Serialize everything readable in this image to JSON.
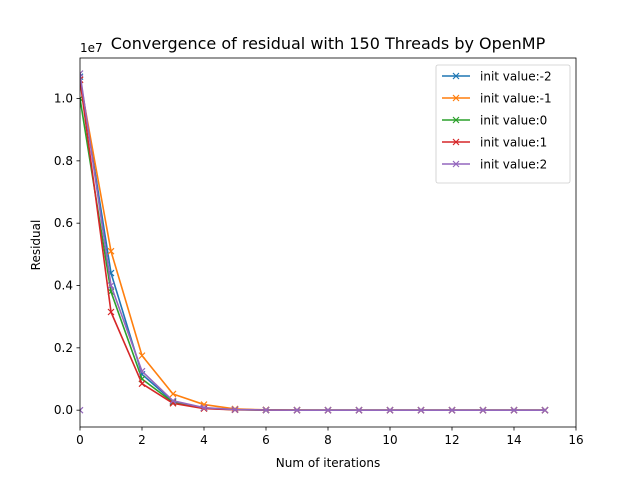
{
  "chart_data": {
    "type": "line",
    "title": "Convergence of residual with 150 Threads by OpenMP",
    "xlabel": "Num of iterations",
    "ylabel": "Residual",
    "y_offset_label": "1e7",
    "xlim": [
      0,
      16
    ],
    "ylim": [
      -0.054,
      1.13
    ],
    "y_scale_factor": 10000000,
    "xticks": [
      0,
      2,
      4,
      6,
      8,
      10,
      12,
      14,
      16
    ],
    "yticks": [
      0.0,
      0.2,
      0.4,
      0.6,
      0.8,
      1.0
    ],
    "ytick_labels": [
      "0.0",
      "0.2",
      "0.4",
      "0.6",
      "0.8",
      "1.0"
    ],
    "grid": false,
    "legend_position": "top-right",
    "marker": "x",
    "x": [
      0,
      1,
      2,
      3,
      4,
      5,
      6,
      7,
      8,
      9,
      10,
      11,
      12,
      13,
      14,
      15
    ],
    "series": [
      {
        "name": "init value:-2",
        "color": "#1f77b4",
        "values": [
          1.07,
          0.44,
          0.115,
          0.028,
          0.007,
          0.002,
          0.0005,
          0.0001,
          0,
          0,
          0,
          0,
          0,
          0,
          0,
          0
        ]
      },
      {
        "name": "init value:-1",
        "color": "#ff7f0e",
        "values": [
          1.06,
          0.51,
          0.175,
          0.052,
          0.018,
          0.004,
          0.001,
          0.0002,
          0,
          0,
          0,
          0,
          0,
          0,
          0,
          0
        ]
      },
      {
        "name": "init value:0",
        "color": "#2ca02c",
        "values": [
          1.0,
          0.38,
          0.1,
          0.025,
          0.006,
          0.0015,
          0.0004,
          0.0001,
          0,
          0,
          0,
          0,
          0,
          0,
          0,
          0
        ]
      },
      {
        "name": "init value:1",
        "color": "#d62728",
        "values": [
          1.06,
          0.315,
          0.085,
          0.022,
          0.005,
          0.0012,
          0.0003,
          0.0001,
          0,
          0,
          0,
          0,
          0,
          0,
          0,
          0
        ]
      },
      {
        "name": "init value:2",
        "color": "#9467bd",
        "values": [
          1.08,
          0.4,
          0.125,
          0.03,
          0.008,
          0.002,
          0.0005,
          0.0001,
          0,
          0,
          0,
          0,
          0,
          0,
          0,
          0
        ]
      }
    ],
    "extra_points": [
      {
        "series": "init value:2",
        "x": 0,
        "y": 0.0
      }
    ]
  }
}
